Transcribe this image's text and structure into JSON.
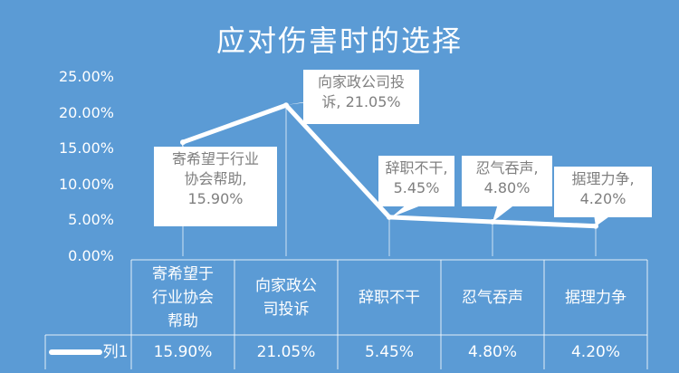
{
  "chart_data": {
    "type": "line",
    "title": "应对伤害时的选择",
    "categories": [
      "寄希望于行业协会帮助",
      "向家政公司投诉",
      "辞职不干",
      "忍气吞声",
      "据理力争"
    ],
    "table_categories": [
      "寄希望于\n行业协会\n帮助",
      "向家政公\n司投诉",
      "辞职不干",
      "忍气吞声",
      "据理力争"
    ],
    "series": [
      {
        "name": "列1",
        "values": [
          15.9,
          21.05,
          5.45,
          4.8,
          4.2
        ],
        "value_labels": [
          "15.90%",
          "21.05%",
          "5.45%",
          "4.80%",
          "4.20%"
        ]
      }
    ],
    "data_labels": [
      "寄希望于行业\n协会帮助,\n15.90%",
      "向家政公司投\n诉, 21.05%",
      "辞职不干,\n5.45%",
      "忍气吞声,\n4.80%",
      "据理力争,\n4.20%"
    ],
    "yticks": [
      "0.00%",
      "5.00%",
      "10.00%",
      "15.00%",
      "20.00%",
      "25.00%"
    ],
    "ylim": [
      0,
      25
    ],
    "legend": "data-table",
    "colors": {
      "background": "#5b9bd5",
      "line": "#ffffff",
      "label_bg": "#ffffff",
      "label_text": "#7f7f7f"
    }
  }
}
